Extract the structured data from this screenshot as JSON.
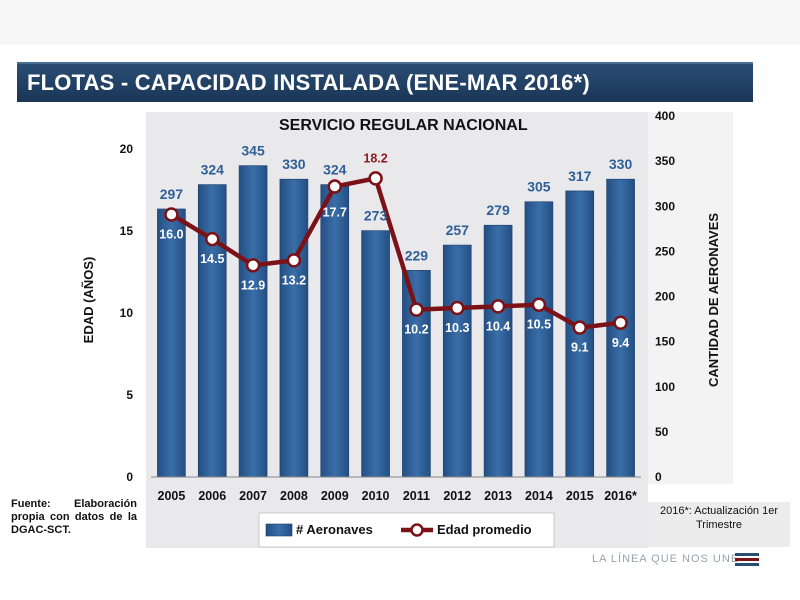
{
  "header": {
    "title": "FLOTAS - CAPACIDAD INSTALADA  (ENE-MAR 2016*)"
  },
  "footer": {
    "source": "Fuente: Elaboración propia con datos de la DGAC-SCT.",
    "note": "2016*: Actualización 1er Trimestre",
    "brand": "LA LÍNEA QUE NOS UNE"
  },
  "colors": {
    "bars": "#2f5f97",
    "line": "#7b1218",
    "title_bg": "#1f3f63"
  },
  "chart_data": {
    "type": "bar",
    "title": "SERVICIO REGULAR NACIONAL",
    "categories": [
      "2005",
      "2006",
      "2007",
      "2008",
      "2009",
      "2010",
      "2011",
      "2012",
      "2013",
      "2014",
      "2015",
      "2016*"
    ],
    "series": [
      {
        "name": "# Aeronaves",
        "type": "bar",
        "axis": "right",
        "values": [
          297,
          324,
          345,
          330,
          324,
          273,
          229,
          257,
          279,
          305,
          317,
          330
        ]
      },
      {
        "name": "Edad promedio",
        "type": "line",
        "axis": "left",
        "values": [
          16.0,
          14.5,
          12.9,
          13.2,
          17.7,
          18.2,
          10.2,
          10.3,
          10.4,
          10.5,
          9.1,
          9.4
        ],
        "labels": [
          "16.0",
          "14.5",
          "12.9",
          "13.2",
          "17.7",
          "18.2",
          "10.2",
          "10.3",
          "10.4",
          "10.5",
          "9.1",
          "9.4"
        ]
      }
    ],
    "ylabel_left": "EDAD (AÑOS)",
    "ylabel_right": "CANTIDAD DE AERONAVES",
    "ylim_left": [
      0,
      22
    ],
    "ylim_right": [
      0,
      400
    ],
    "yticks_left": [
      "0",
      "5",
      "10",
      "15",
      "20"
    ],
    "yticks_right": [
      "0",
      "50",
      "100",
      "150",
      "200",
      "250",
      "300",
      "350",
      "400"
    ],
    "legend_position": "bottom"
  }
}
